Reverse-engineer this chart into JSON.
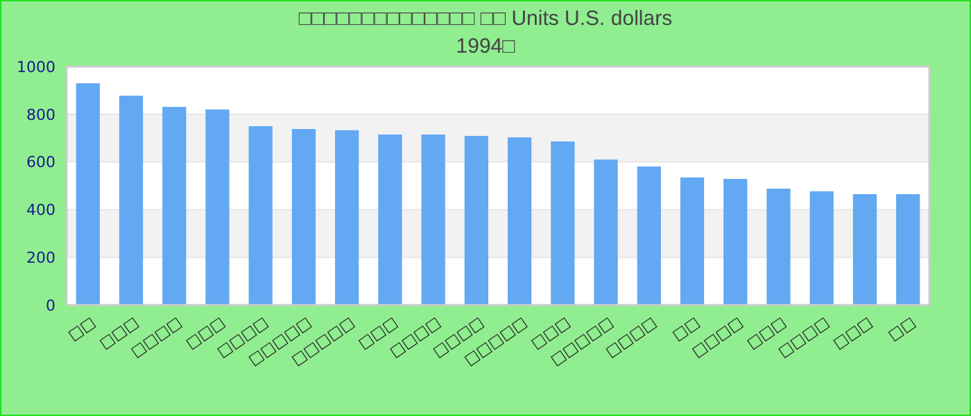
{
  "chart_data": {
    "type": "bar",
    "title": "□□□□□□□□□□□□□□ □□ Units U.S. dollars",
    "subtitle": "1994□",
    "categories": [
      "□□",
      "□□□",
      "□□□□",
      "□□□",
      "□□□□",
      "□□□□□",
      "□□□□□",
      "□□□",
      "□□□□",
      "□□□□",
      "□□□□□",
      "□□□",
      "□□□□□",
      "□□□□",
      "□□",
      "□□□□",
      "□□□",
      "□□□□",
      "□□□",
      "□□"
    ],
    "values": [
      930,
      878,
      831,
      820,
      750,
      738,
      733,
      715,
      715,
      709,
      703,
      686,
      610,
      581,
      535,
      529,
      488,
      477,
      465,
      465
    ],
    "color": "#62a8f2",
    "ylim": [
      0,
      1000
    ],
    "yticks": [
      0,
      200,
      400,
      600,
      800,
      1000
    ],
    "grid": "y"
  }
}
